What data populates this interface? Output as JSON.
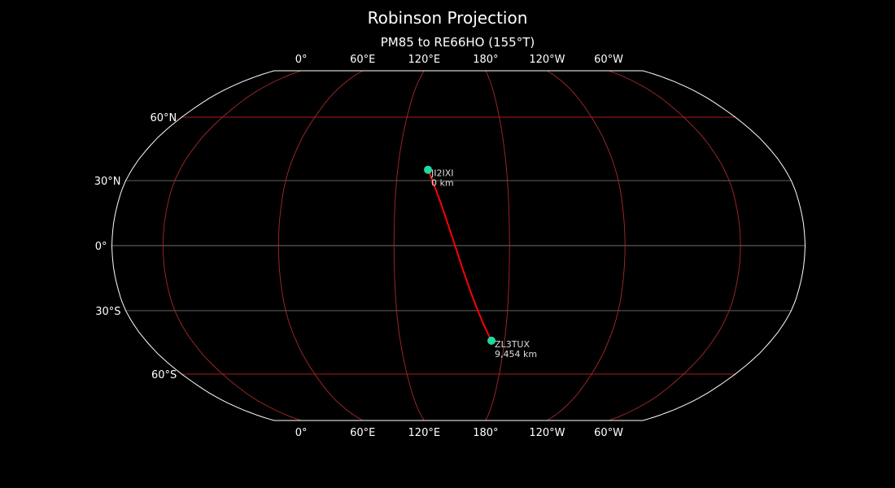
{
  "title": "Robinson Projection",
  "subtitle": "PM85 to RE66HO (155°T)",
  "colors": {
    "background": "#000000",
    "coastline": "#8a8a8a",
    "meridian": "#a52a2a",
    "parallel_major": "#c02020",
    "parallel_minor": "#707070",
    "path": "#ff0000",
    "marker": "#20d8a0",
    "border": "#ffffff"
  },
  "map": {
    "projection": "Robinson",
    "central_longitude": 153.5,
    "meridians": [
      0,
      60,
      120,
      180,
      -120,
      -60
    ],
    "lon_labels": [
      "0°",
      "60°E",
      "120°E",
      "180°",
      "120°W",
      "60°W"
    ],
    "parallels": [
      60,
      30,
      0,
      -30,
      -60
    ],
    "lat_labels": [
      "60°N",
      "30°N",
      "0°",
      "30°S",
      "60°S"
    ]
  },
  "chart_data": {
    "type": "map",
    "path": {
      "style": "great-circle",
      "from": "JI2IXI",
      "to": "ZL3TUX"
    },
    "points": [
      {
        "call": "JI2IXI",
        "lat": 35.0,
        "lon": 136.7,
        "distance": "0 km"
      },
      {
        "call": "ZL3TUX",
        "lat": -43.9,
        "lon": 172.5,
        "distance": "9,454 km"
      }
    ]
  }
}
